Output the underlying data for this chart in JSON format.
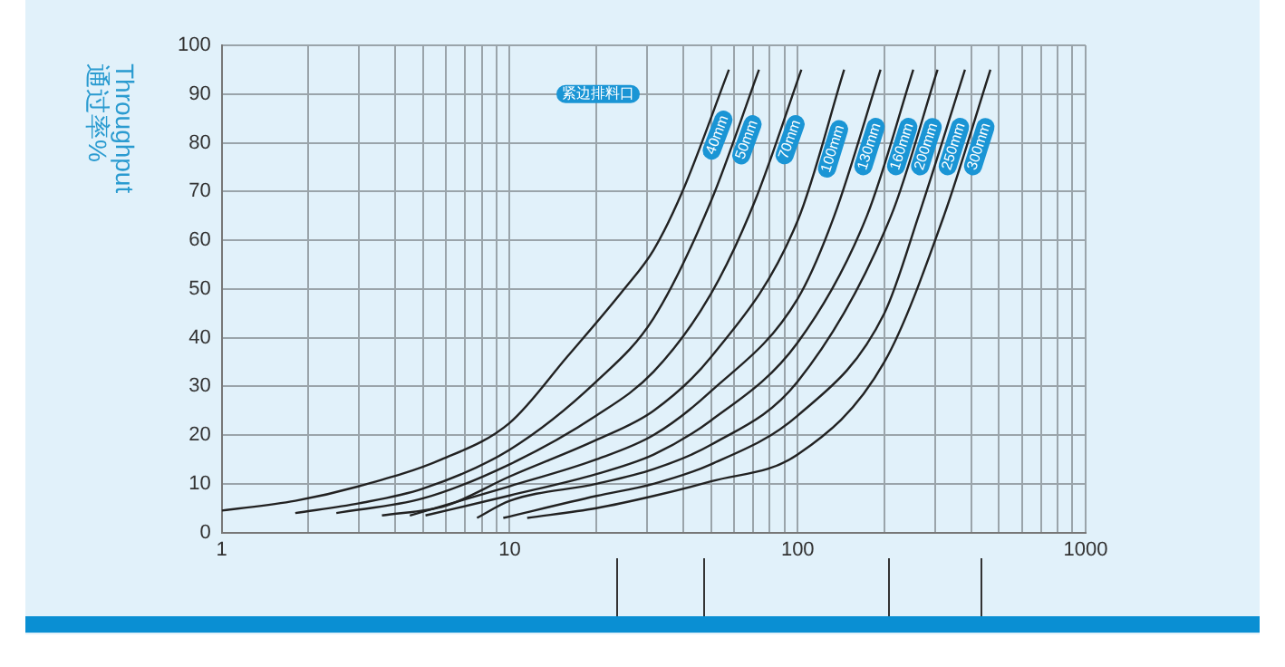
{
  "chart_data": {
    "type": "line",
    "ylabel": "Throughput 通过率%",
    "legend_title": "紧边排料口",
    "log": "x",
    "xlim": [
      1,
      1000
    ],
    "xticks": [
      1,
      {
        "value": 2,
        "label": null
      },
      {
        "value": 3,
        "label": null
      },
      {
        "value": 4,
        "label": null
      },
      {
        "value": 5,
        "label": null
      },
      {
        "value": 6,
        "label": null
      },
      {
        "value": 7,
        "label": null
      },
      {
        "value": 8,
        "label": null
      },
      {
        "value": 9,
        "label": null
      },
      10,
      {
        "value": 20,
        "label": null
      },
      {
        "value": 30,
        "label": null
      },
      {
        "value": 40,
        "label": null
      },
      {
        "value": 50,
        "label": null
      },
      {
        "value": 60,
        "label": null
      },
      {
        "value": 70,
        "label": null
      },
      {
        "value": 80,
        "label": null
      },
      {
        "value": 90,
        "label": null
      },
      100,
      {
        "value": 200,
        "label": null
      },
      {
        "value": 300,
        "label": null
      },
      {
        "value": 400,
        "label": null
      },
      {
        "value": 500,
        "label": null
      },
      {
        "value": 600,
        "label": null
      },
      {
        "value": 700,
        "label": null
      },
      {
        "value": 800,
        "label": null
      },
      {
        "value": 900,
        "label": null
      },
      1000
    ],
    "ylim": [
      0,
      100
    ],
    "yticks": [
      0,
      10,
      20,
      30,
      40,
      50,
      60,
      70,
      80,
      90,
      100
    ],
    "grid": true,
    "legend": false,
    "marker": "none",
    "line_style": "solid",
    "series": [
      {
        "name": "40mm",
        "color": "#222222",
        "x": [
          1,
          1.8,
          3,
          5.8,
          10,
          15.8,
          25,
          31.6,
          39.8,
          57.7
        ],
        "values": [
          4.5,
          6.5,
          9.5,
          15,
          22.5,
          36,
          50,
          58,
          70,
          95
        ]
      },
      {
        "name": "50mm",
        "color": "#222222",
        "x": [
          1.8,
          3,
          5,
          10,
          20,
          31.6,
          50,
          73.4
        ],
        "values": [
          4,
          6,
          9,
          17,
          31,
          44,
          68,
          95
        ]
      },
      {
        "name": "70mm",
        "color": "#222222",
        "x": [
          2.5,
          5,
          10,
          20,
          31.6,
          50,
          71,
          103
        ],
        "values": [
          4,
          7,
          14,
          24,
          33,
          49,
          68,
          95
        ]
      },
      {
        "name": "100mm",
        "color": "#222222",
        "x": [
          3.6,
          6,
          10,
          20,
          31.6,
          50,
          100,
          145
        ],
        "values": [
          3.5,
          5.5,
          11.5,
          19,
          25,
          36,
          64,
          95
        ]
      },
      {
        "name": "130mm",
        "color": "#222222",
        "x": [
          4.5,
          10,
          20,
          31.6,
          50,
          100,
          134,
          194
        ],
        "values": [
          3.5,
          9.5,
          15,
          20,
          29,
          48,
          65,
          95
        ]
      },
      {
        "name": "160mm",
        "color": "#222222",
        "x": [
          5.1,
          10,
          20,
          31.6,
          50,
          100,
          174,
          252
        ],
        "values": [
          3.5,
          7.6,
          12,
          16,
          23,
          39,
          65,
          95
        ]
      },
      {
        "name": "200mm",
        "color": "#222222",
        "x": [
          7.7,
          10,
          20,
          31.6,
          50,
          100,
          211,
          306
        ],
        "values": [
          3,
          6.5,
          10,
          13,
          18,
          31,
          65,
          95
        ]
      },
      {
        "name": "250mm",
        "color": "#222222",
        "x": [
          9.5,
          20,
          31.6,
          50,
          100,
          200,
          263,
          381
        ],
        "values": [
          3,
          7.5,
          10,
          14,
          24,
          45,
          65,
          95
        ]
      },
      {
        "name": "300mm",
        "color": "#222222",
        "x": [
          11.5,
          20,
          31.6,
          50,
          100,
          200,
          322,
          467
        ],
        "values": [
          3,
          5,
          7.5,
          10.5,
          16,
          35,
          65,
          95
        ]
      }
    ]
  }
}
